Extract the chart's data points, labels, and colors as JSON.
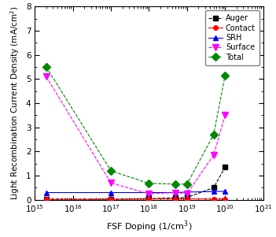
{
  "x": [
    2000000000000000.0,
    1e+17,
    1e+18,
    5e+18,
    1e+19,
    5e+19,
    1e+20
  ],
  "auger": [
    0.02,
    0.02,
    0.05,
    0.08,
    0.1,
    0.5,
    1.35
  ],
  "contact": [
    0.02,
    0.02,
    0.03,
    0.04,
    0.04,
    0.03,
    0.03
  ],
  "srh": [
    0.3,
    0.3,
    0.3,
    0.3,
    0.32,
    0.34,
    0.35
  ],
  "surface": [
    5.1,
    0.7,
    0.25,
    0.3,
    0.25,
    1.85,
    3.5
  ],
  "total": [
    5.5,
    1.2,
    0.68,
    0.65,
    0.65,
    2.7,
    5.15
  ],
  "auger_color": "#000000",
  "contact_color": "#ff0000",
  "srh_color": "#0000ff",
  "surface_color": "#ff00ff",
  "total_color": "#008800",
  "xlabel": "FSF Doping (1/cm$^3$)",
  "ylabel": "Light Recombination Current Density (mA/cm$^2$)",
  "xlim": [
    1000000000000000.0,
    1e+21
  ],
  "ylim": [
    0,
    8
  ],
  "yticks": [
    0,
    1,
    2,
    3,
    4,
    5,
    6,
    7,
    8
  ],
  "figsize": [
    3.51,
    3.01
  ],
  "dpi": 100
}
